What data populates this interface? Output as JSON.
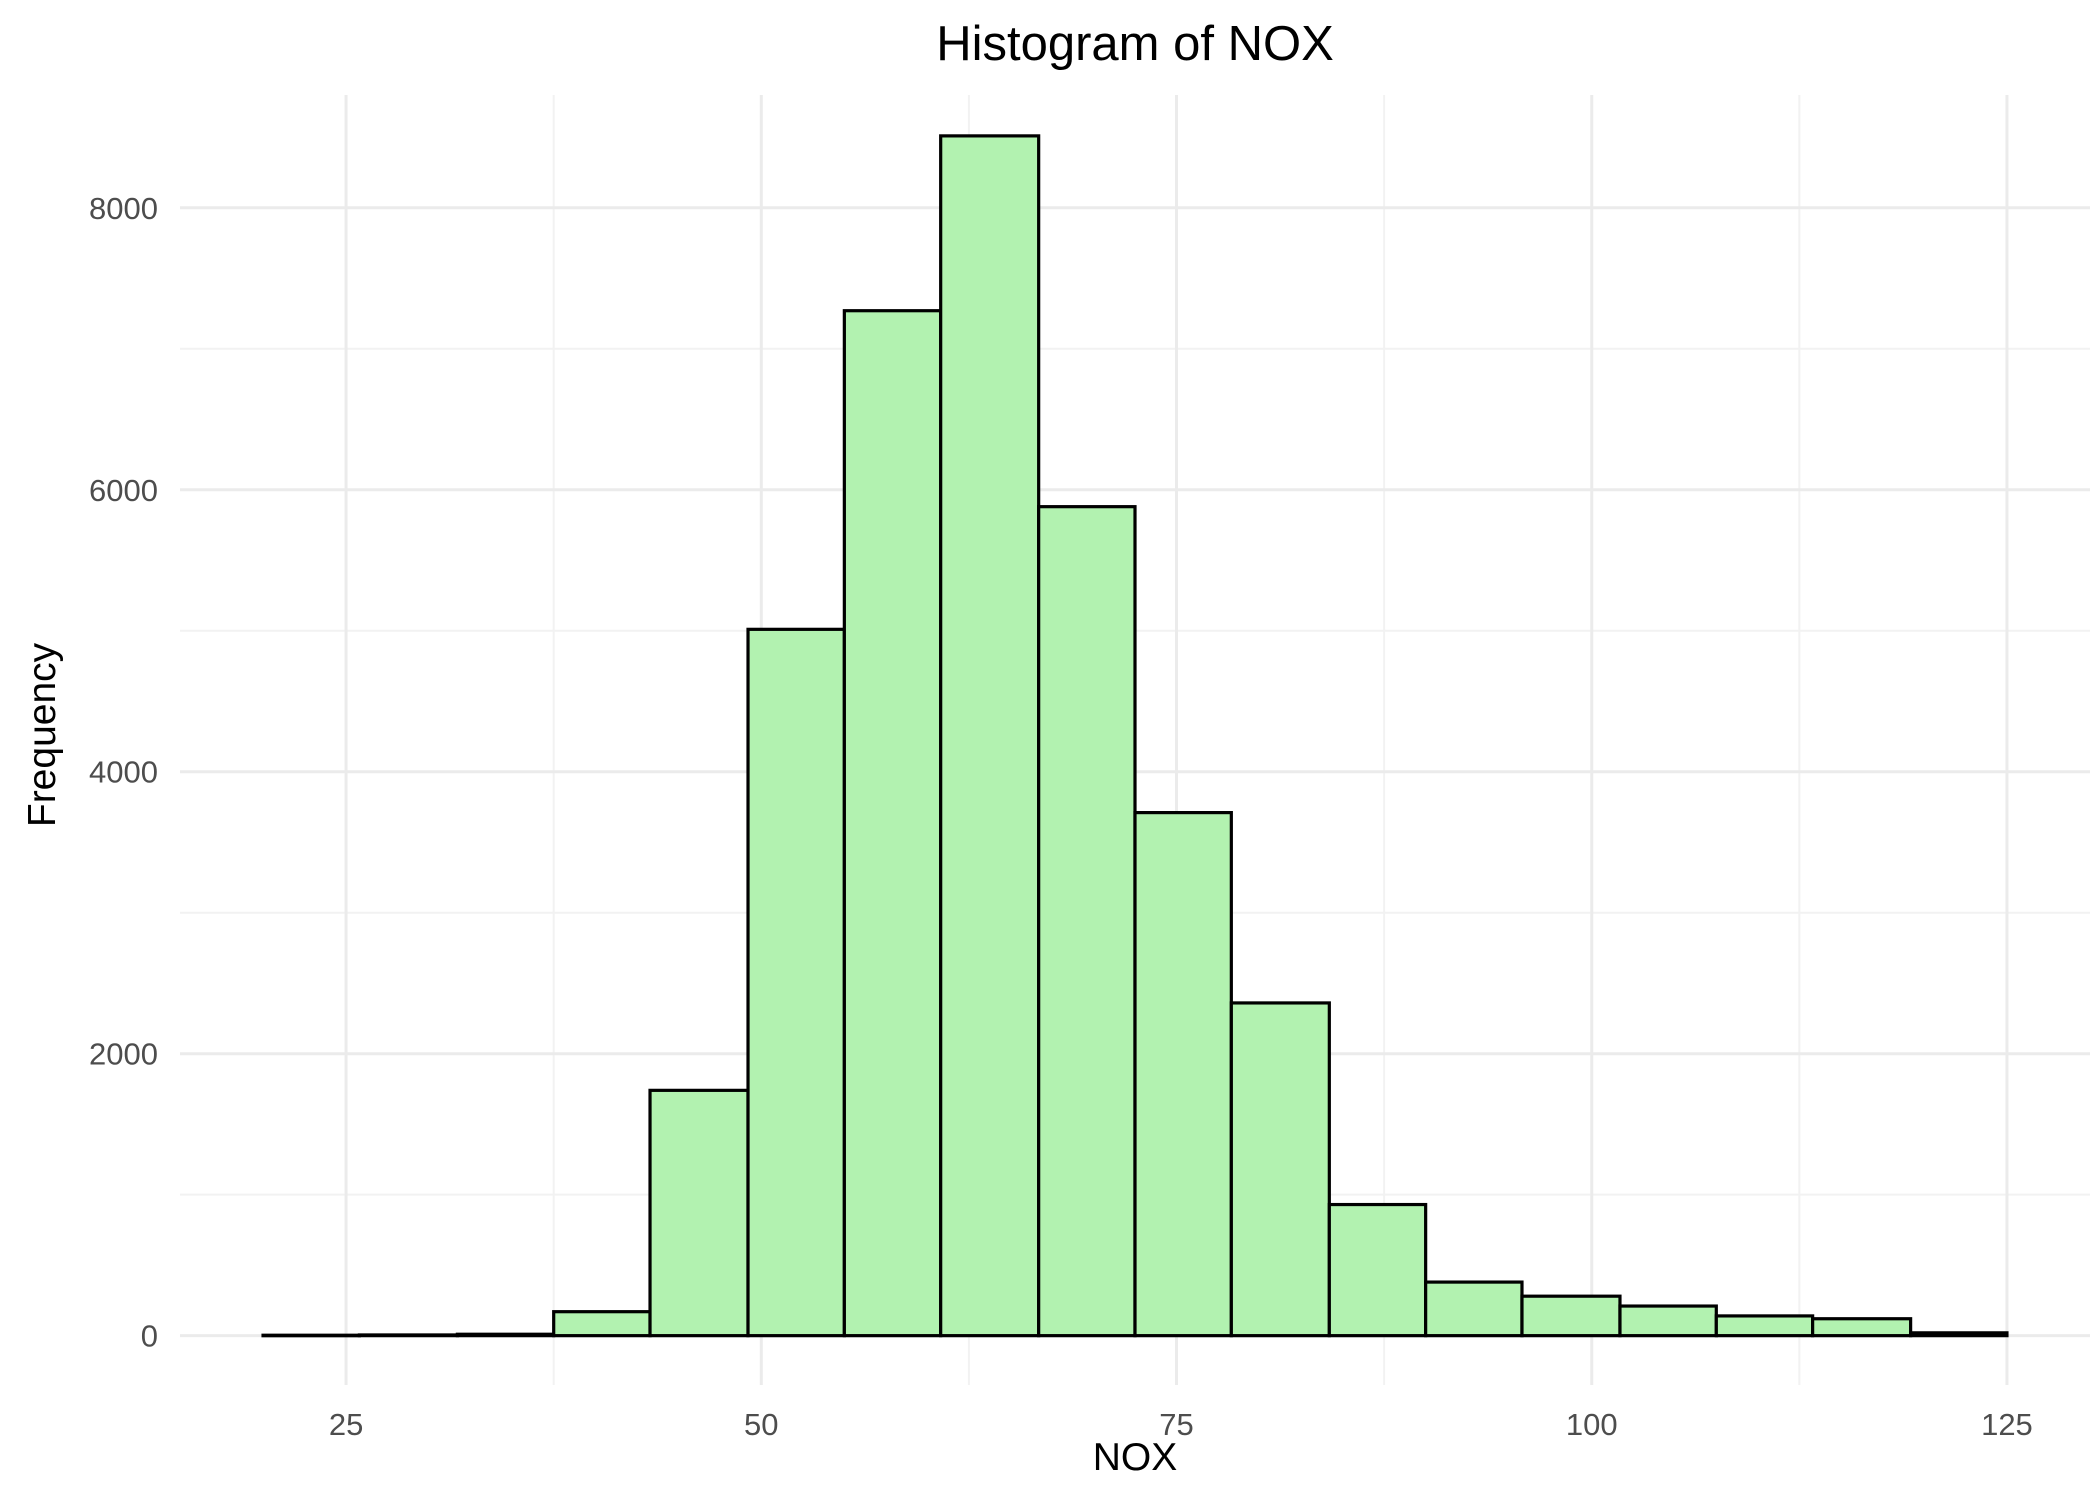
{
  "chart_data": {
    "type": "bar",
    "title": "Histogram of NOX",
    "xlabel": "NOX",
    "ylabel": "Frequency",
    "xlim": [
      15,
      130
    ],
    "ylim": [
      -350,
      8800
    ],
    "x_ticks": [
      25,
      50,
      75,
      100,
      125
    ],
    "x_tick_labels": [
      "25",
      "50",
      "75",
      "100",
      "125"
    ],
    "x_minor_ticks": [
      37.5,
      62.5,
      87.5,
      112.5
    ],
    "y_ticks": [
      0,
      2000,
      4000,
      6000,
      8000
    ],
    "y_tick_labels": [
      "0",
      "2000",
      "4000",
      "6000",
      "8000"
    ],
    "y_minor_ticks": [
      1000,
      3000,
      5000,
      7000
    ],
    "grid": true,
    "bar_fill": "#b2f2b0",
    "bar_stroke": "#000000",
    "bins": [
      {
        "x0": 20.0,
        "x1": 25.8,
        "count": 3
      },
      {
        "x0": 25.8,
        "x1": 31.7,
        "count": 5
      },
      {
        "x0": 31.7,
        "x1": 37.5,
        "count": 10
      },
      {
        "x0": 37.5,
        "x1": 43.3,
        "count": 170
      },
      {
        "x0": 43.3,
        "x1": 49.2,
        "count": 1740
      },
      {
        "x0": 49.2,
        "x1": 55.0,
        "count": 5010
      },
      {
        "x0": 55.0,
        "x1": 60.8,
        "count": 7270
      },
      {
        "x0": 60.8,
        "x1": 66.7,
        "count": 8510
      },
      {
        "x0": 66.7,
        "x1": 72.5,
        "count": 5880
      },
      {
        "x0": 72.5,
        "x1": 78.3,
        "count": 3710
      },
      {
        "x0": 78.3,
        "x1": 84.2,
        "count": 2360
      },
      {
        "x0": 84.2,
        "x1": 90.0,
        "count": 930
      },
      {
        "x0": 90.0,
        "x1": 95.8,
        "count": 380
      },
      {
        "x0": 95.8,
        "x1": 101.7,
        "count": 280
      },
      {
        "x0": 101.7,
        "x1": 107.5,
        "count": 210
      },
      {
        "x0": 107.5,
        "x1": 113.3,
        "count": 140
      },
      {
        "x0": 113.3,
        "x1": 119.2,
        "count": 120
      },
      {
        "x0": 119.2,
        "x1": 125.0,
        "count": 20
      }
    ]
  }
}
